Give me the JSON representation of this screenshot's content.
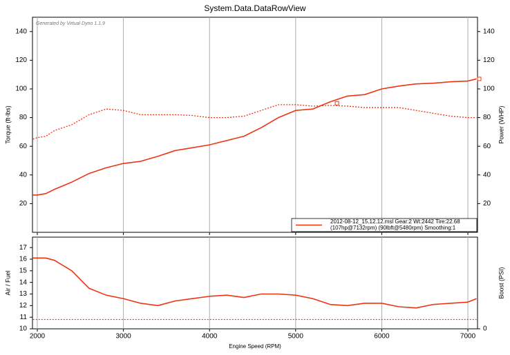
{
  "chart_data": [
    {
      "type": "line",
      "title": "System.Data.DataRowView",
      "annotation": "Generated by Virtual Dyno 1.1.9",
      "ylabel": "Torque (ft-lbs)",
      "y2label": "Power (WHP)",
      "legend": [
        "2012-08-12_15.12.12.msl Gear:2 Wt:2442 Tire:22.68",
        "(107hp@7132rpm) (90lbft@5480rpm) Smoothing:1"
      ],
      "legend_color": "#ee3311",
      "legend_position": "lower right",
      "x": [
        1950,
        2000,
        2100,
        2200,
        2400,
        2600,
        2800,
        3000,
        3200,
        3400,
        3600,
        3800,
        4000,
        4200,
        4400,
        4600,
        4800,
        5000,
        5200,
        5400,
        5600,
        5800,
        6000,
        6200,
        6400,
        6600,
        6800,
        7000,
        7100
      ],
      "xlim": [
        1944,
        7112
      ],
      "xticks": [
        2000,
        3000,
        4000,
        5000,
        6000,
        7000
      ],
      "x_tick_labels": false,
      "ylim": [
        0,
        150
      ],
      "yticks": [
        20,
        40,
        60,
        80,
        100,
        120,
        140
      ],
      "y2lim": [
        0,
        150
      ],
      "y2ticks": [
        20,
        40,
        60,
        80,
        100,
        120,
        140
      ],
      "grid": true,
      "series": [
        {
          "color": "#ee3311",
          "style": "solid",
          "axis": "y2",
          "values": [
            26,
            26,
            27,
            30,
            35,
            41,
            45,
            48,
            49.5,
            53,
            57,
            59,
            61,
            64,
            67,
            73,
            80,
            85,
            86,
            91,
            95,
            96,
            100,
            102,
            103.5,
            104,
            105,
            105.5,
            107
          ]
        },
        {
          "color": "#ee3311",
          "style": "dotted",
          "values": [
            65,
            66,
            67,
            71,
            75,
            82,
            86,
            85,
            82,
            82,
            82,
            81.5,
            80,
            80,
            81,
            85,
            89,
            89,
            88,
            88.5,
            88,
            87,
            87,
            87,
            85,
            83,
            81,
            80,
            80
          ]
        }
      ],
      "markers": [
        {
          "x": 7132,
          "y": 107
        },
        {
          "x": 5480,
          "y": 90
        }
      ]
    },
    {
      "type": "line",
      "xlabel": "Engine Speed (RPM)",
      "ylabel": "Air / Fuel",
      "y2label": "Boost (PSI)",
      "x": [
        1950,
        2000,
        2100,
        2200,
        2400,
        2600,
        2800,
        3000,
        3200,
        3400,
        3600,
        3800,
        4000,
        4200,
        4400,
        4600,
        4800,
        5000,
        5200,
        5400,
        5600,
        5800,
        6000,
        6200,
        6400,
        6600,
        6800,
        7000,
        7100
      ],
      "xlim": [
        1944,
        7112
      ],
      "xticks": [
        2000,
        3000,
        4000,
        5000,
        6000,
        7000
      ],
      "x_tick_labels": true,
      "ylim": [
        10,
        17.9
      ],
      "yticks": [
        10,
        11,
        12,
        13,
        14,
        15,
        16,
        17
      ],
      "y2lim": [
        0,
        7.9
      ],
      "y2ticks": [
        0
      ],
      "grid": true,
      "series": [
        {
          "color": "#ee3311",
          "style": "solid",
          "values": [
            16.1,
            16.1,
            16.1,
            15.9,
            15,
            13.5,
            12.9,
            12.6,
            12.2,
            12.0,
            12.4,
            12.6,
            12.8,
            12.9,
            12.7,
            13.0,
            13.0,
            12.9,
            12.6,
            12.1,
            12.0,
            12.2,
            12.2,
            11.9,
            11.8,
            12.1,
            12.2,
            12.3,
            12.6
          ]
        },
        {
          "color": "#ee3311",
          "style": "dotted",
          "values": [
            10.8,
            10.8,
            10.8,
            10.8,
            10.8,
            10.8,
            10.8,
            10.8,
            10.8,
            10.8,
            10.8,
            10.8,
            10.8,
            10.8,
            10.8,
            10.8,
            10.8,
            10.8,
            10.8,
            10.8,
            10.8,
            10.8,
            10.8,
            10.8,
            10.8,
            10.8,
            10.8,
            10.8,
            10.8
          ]
        }
      ]
    }
  ]
}
